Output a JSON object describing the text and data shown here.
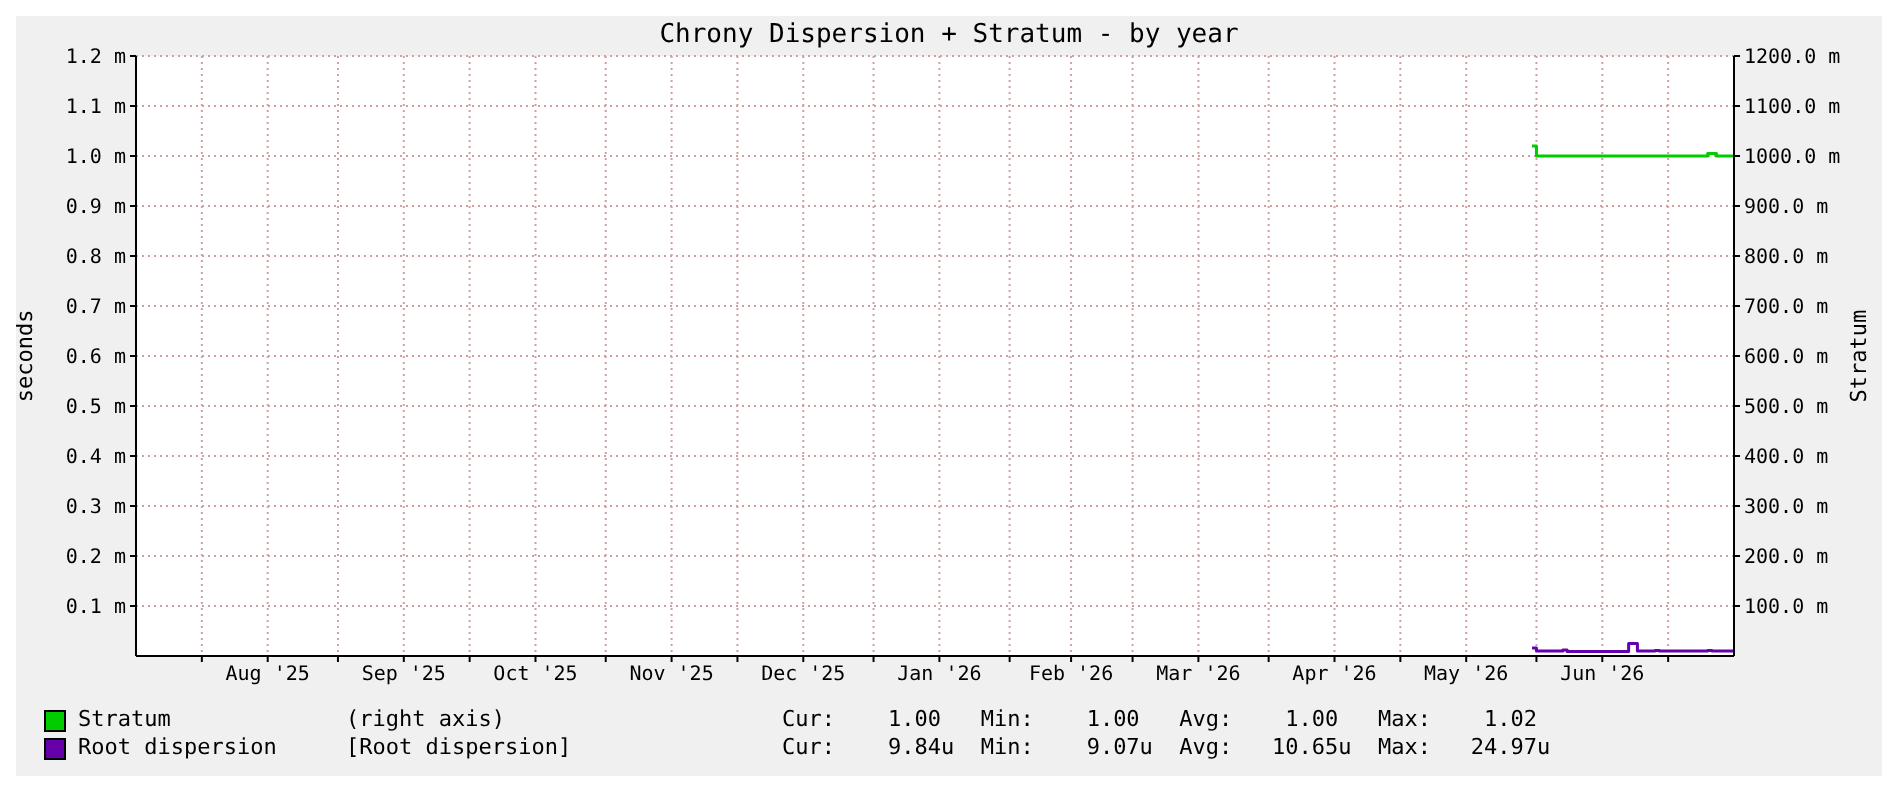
{
  "chart_data": {
    "type": "step",
    "title": "Chrony Dispersion + Stratum - by year",
    "ylabel": "seconds",
    "y2label": "Stratum",
    "xlim": [
      "2025-07-17",
      "2026-07-16"
    ],
    "xticks": [
      {
        "value": "2025-08-01",
        "label": null
      },
      {
        "value": "2025-08-16",
        "label": "Aug '25"
      },
      {
        "value": "2025-09-01",
        "label": null
      },
      {
        "value": "2025-09-16",
        "label": "Sep '25"
      },
      {
        "value": "2025-10-01",
        "label": null
      },
      {
        "value": "2025-10-16",
        "label": "Oct '25"
      },
      {
        "value": "2025-11-01",
        "label": null
      },
      {
        "value": "2025-11-16",
        "label": "Nov '25"
      },
      {
        "value": "2025-12-01",
        "label": null
      },
      {
        "value": "2025-12-16",
        "label": "Dec '25"
      },
      {
        "value": "2026-01-01",
        "label": null
      },
      {
        "value": "2026-01-16",
        "label": "Jan '26"
      },
      {
        "value": "2026-02-01",
        "label": null
      },
      {
        "value": "2026-02-15",
        "label": "Feb '26"
      },
      {
        "value": "2026-03-01",
        "label": null
      },
      {
        "value": "2026-03-16",
        "label": "Mar '26"
      },
      {
        "value": "2026-04-01",
        "label": null
      },
      {
        "value": "2026-04-16",
        "label": "Apr '26"
      },
      {
        "value": "2026-05-01",
        "label": null
      },
      {
        "value": "2026-05-16",
        "label": "May '26"
      },
      {
        "value": "2026-06-01",
        "label": null
      },
      {
        "value": "2026-06-16",
        "label": "Jun '26"
      },
      {
        "value": "2026-07-01",
        "label": null
      }
    ],
    "ylim": [
      0,
      1.2
    ],
    "yticks": [
      {
        "value": 0.1,
        "label": "0.1 m"
      },
      {
        "value": 0.2,
        "label": "0.2 m"
      },
      {
        "value": 0.3,
        "label": "0.3 m"
      },
      {
        "value": 0.4,
        "label": "0.4 m"
      },
      {
        "value": 0.5,
        "label": "0.5 m"
      },
      {
        "value": 0.6,
        "label": "0.6 m"
      },
      {
        "value": 0.7,
        "label": "0.7 m"
      },
      {
        "value": 0.8,
        "label": "0.8 m"
      },
      {
        "value": 0.9,
        "label": "0.9 m"
      },
      {
        "value": 1.0,
        "label": "1.0 m"
      },
      {
        "value": 1.1,
        "label": "1.1 m"
      },
      {
        "value": 1.2,
        "label": "1.2 m"
      }
    ],
    "y2lim": [
      0,
      1200
    ],
    "y2ticks": [
      {
        "value": 100,
        "label": "100.0 m"
      },
      {
        "value": 200,
        "label": "200.0 m"
      },
      {
        "value": 300,
        "label": "300.0 m"
      },
      {
        "value": 400,
        "label": "400.0 m"
      },
      {
        "value": 500,
        "label": "500.0 m"
      },
      {
        "value": 600,
        "label": "600.0 m"
      },
      {
        "value": 700,
        "label": "700.0 m"
      },
      {
        "value": 800,
        "label": "800.0 m"
      },
      {
        "value": 900,
        "label": "900.0 m"
      },
      {
        "value": 1000,
        "label": "1000.0 m"
      },
      {
        "value": 1100,
        "label": "1100.0 m"
      },
      {
        "value": 1200,
        "label": "1200.0 m"
      }
    ],
    "grid": true,
    "legend": "bottom",
    "annotations": [
      "(right axis)",
      "Cur:    1.00   Min:    1.00   Avg:    1.00   Max:    1.02",
      "[Root dispersion]",
      "Cur:    9.84u  Min:    9.07u  Avg:   10.65u  Max:   24.97u"
    ],
    "series": [
      {
        "name": "Stratum",
        "color": "#00cc00",
        "axis": "y2",
        "x": [
          "2026-05-31",
          "2026-06-01",
          "2026-07-10",
          "2026-07-12",
          "2026-07-16"
        ],
        "values": [
          1020,
          1000,
          1005,
          1000,
          1000
        ]
      },
      {
        "name": "Root dispersion",
        "color": "#6600aa",
        "x": [
          "2026-05-31",
          "2026-06-01",
          "2026-06-07",
          "2026-06-08",
          "2026-06-22",
          "2026-06-24",
          "2026-06-28",
          "2026-06-29",
          "2026-07-10",
          "2026-07-11",
          "2026-07-16"
        ],
        "values": [
          0.016,
          0.01,
          0.012,
          0.00907,
          0.02497,
          0.01,
          0.011,
          0.01,
          0.011,
          0.01,
          0.00984
        ]
      }
    ]
  }
}
